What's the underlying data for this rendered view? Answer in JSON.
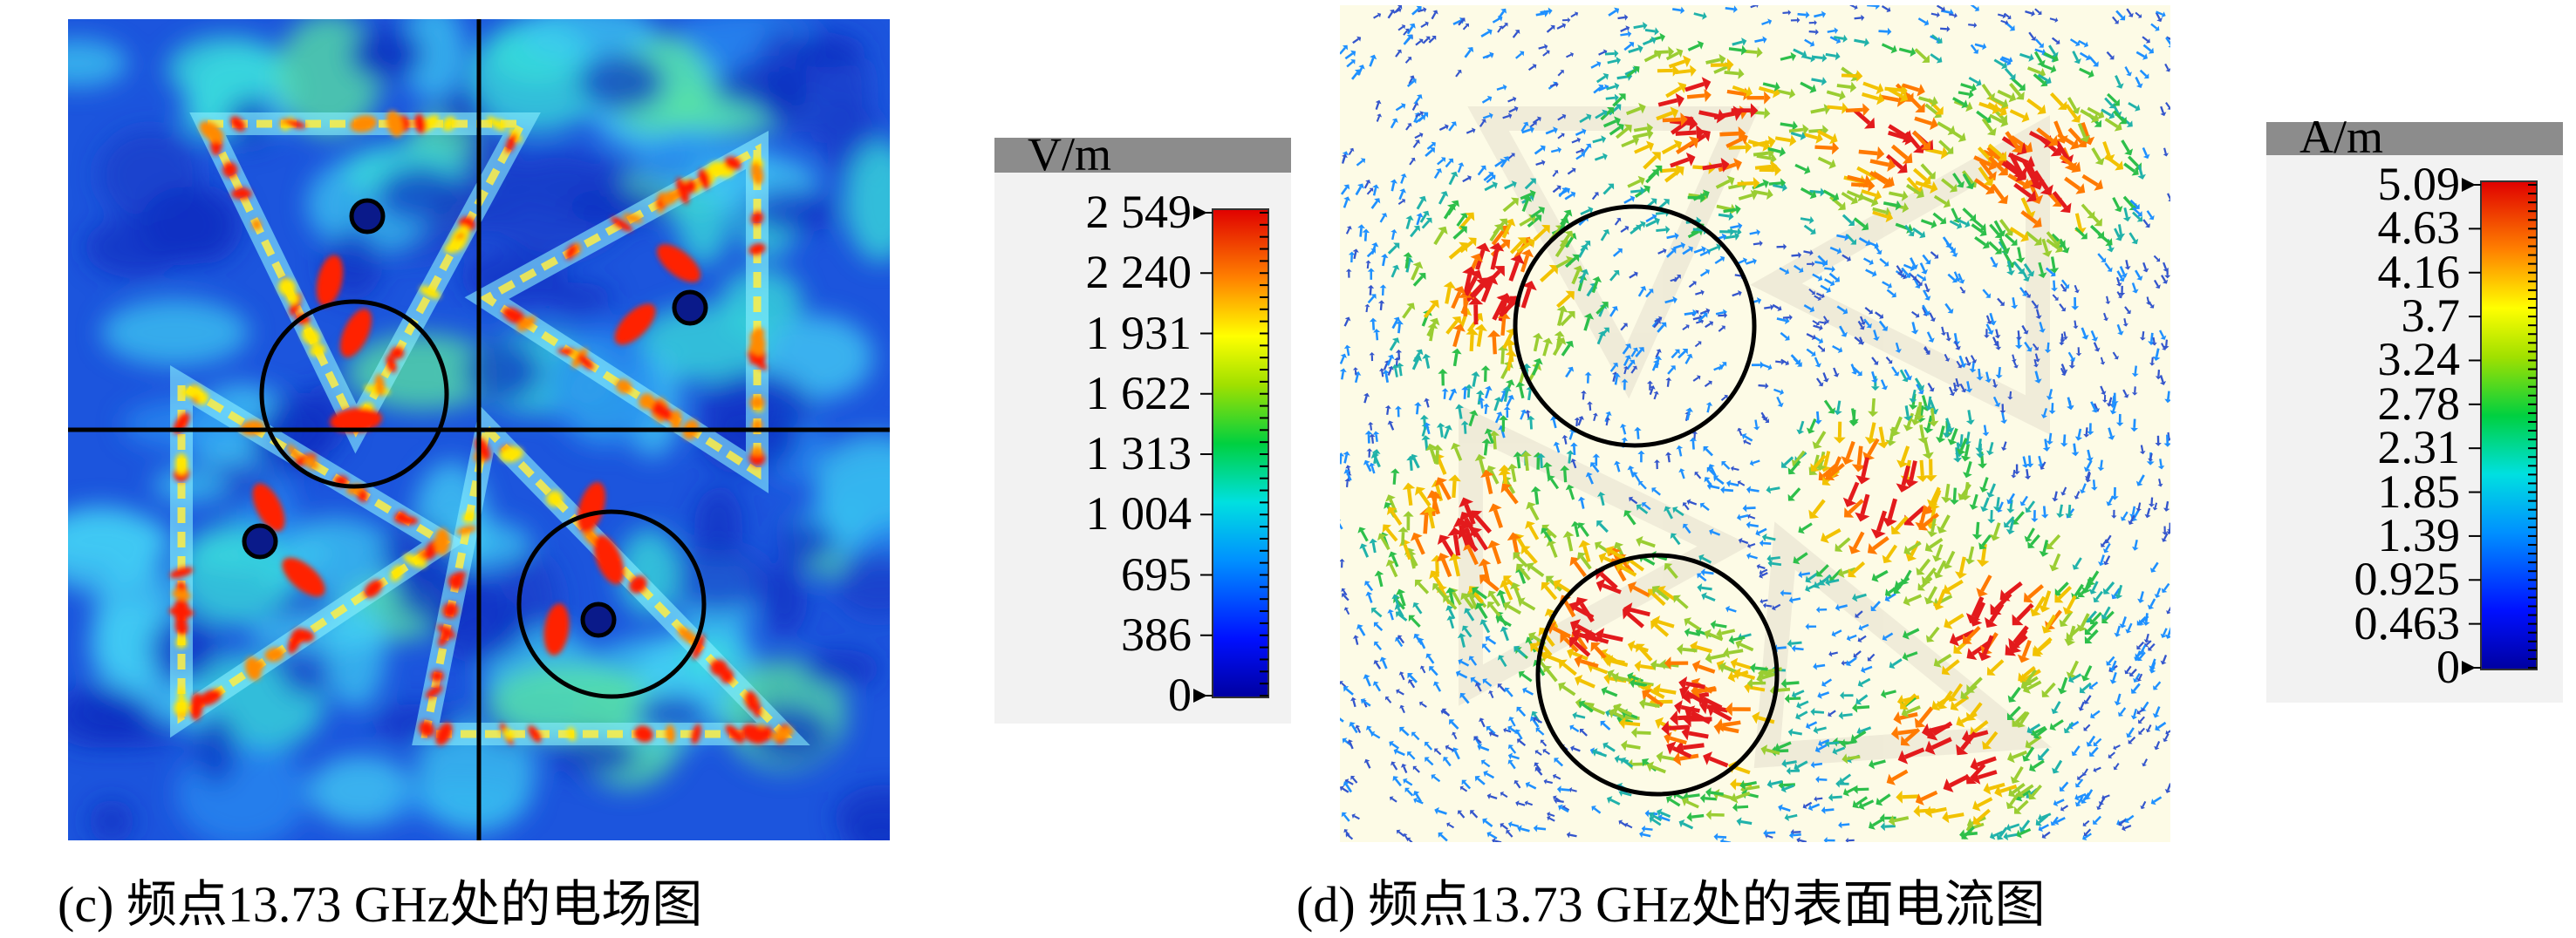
{
  "figure_c": {
    "caption": "(c) 频点13.73 GHz处的电场图",
    "colorbar": {
      "unit": "V/m",
      "ticks": [
        "2 549",
        "2 240",
        "1 931",
        "1 622",
        "1 313",
        "1 004",
        "695",
        "386",
        "0"
      ]
    }
  },
  "figure_d": {
    "caption": "(d) 频点13.73 GHz处的表面电流图",
    "colorbar": {
      "unit": "A/m",
      "ticks": [
        "5.09",
        "4.63",
        "4.16",
        "3.7",
        "3.24",
        "2.78",
        "2.31",
        "1.85",
        "1.39",
        "0.925",
        "0.463",
        "0"
      ]
    }
  },
  "colors": {
    "jet": [
      "#00008f",
      "#0000ff",
      "#0080ff",
      "#00ffff",
      "#00ff80",
      "#80ff00",
      "#ffff00",
      "#ff8000",
      "#ff0000",
      "#c00000"
    ],
    "field_background": "#1a4fd8",
    "current_background": "#fdfbe6"
  }
}
